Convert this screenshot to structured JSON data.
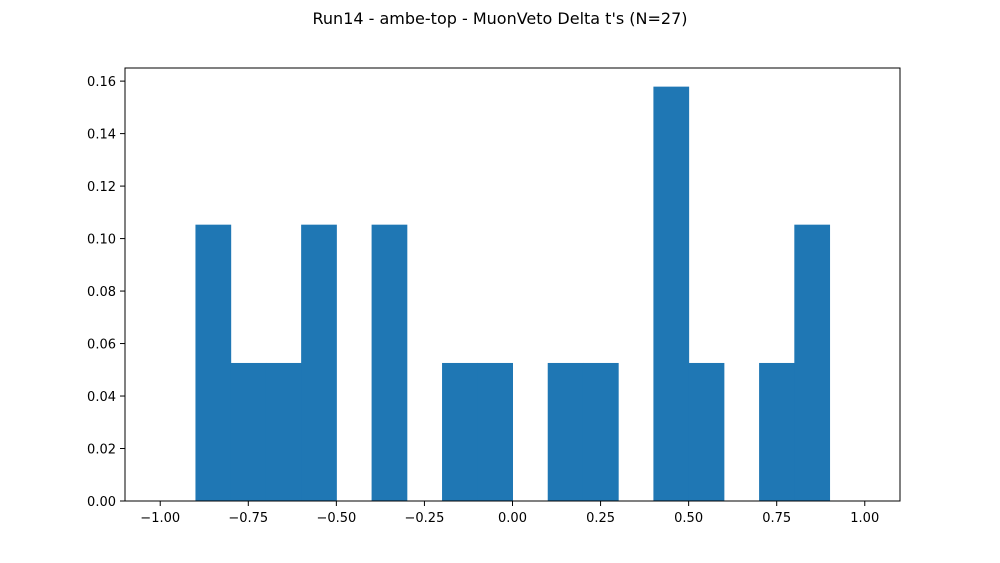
{
  "figure": {
    "title": "Run14 - ambe-top - MuonVeto Delta t's (N=27)"
  },
  "chart_data": {
    "type": "bar",
    "title": "Run14 - ambe-top - MuonVeto Delta t's (N=27)",
    "xlabel": "",
    "ylabel": "",
    "xlim": [
      -1.1,
      1.1
    ],
    "ylim": [
      0.0,
      0.165
    ],
    "x_ticks": [
      -1.0,
      -0.75,
      -0.5,
      -0.25,
      0.0,
      0.25,
      0.5,
      0.75,
      1.0
    ],
    "x_tick_labels": [
      "−1.00",
      "−0.75",
      "−0.50",
      "−0.25",
      "0.00",
      "0.25",
      "0.50",
      "0.75",
      "1.00"
    ],
    "y_ticks": [
      0.0,
      0.02,
      0.04,
      0.06,
      0.08,
      0.1,
      0.12,
      0.14,
      0.16
    ],
    "y_tick_labels": [
      "0.00",
      "0.02",
      "0.04",
      "0.06",
      "0.08",
      "0.10",
      "0.12",
      "0.14",
      "0.16"
    ],
    "grid": false,
    "bar_color": "#1f77b4",
    "bins": [
      {
        "x0": -0.9,
        "x1": -0.8,
        "value": 0.1053
      },
      {
        "x0": -0.8,
        "x1": -0.7,
        "value": 0.0526
      },
      {
        "x0": -0.7,
        "x1": -0.6,
        "value": 0.0526
      },
      {
        "x0": -0.6,
        "x1": -0.5,
        "value": 0.1053
      },
      {
        "x0": -0.4,
        "x1": -0.3,
        "value": 0.1053
      },
      {
        "x0": -0.2,
        "x1": -0.1,
        "value": 0.0526
      },
      {
        "x0": -0.1,
        "x1": 0.0,
        "value": 0.0526
      },
      {
        "x0": 0.1,
        "x1": 0.2,
        "value": 0.0526
      },
      {
        "x0": 0.2,
        "x1": 0.3,
        "value": 0.0526
      },
      {
        "x0": 0.4,
        "x1": 0.5,
        "value": 0.1579
      },
      {
        "x0": 0.5,
        "x1": 0.6,
        "value": 0.0526
      },
      {
        "x0": 0.7,
        "x1": 0.8,
        "value": 0.0526
      },
      {
        "x0": 0.8,
        "x1": 0.9,
        "value": 0.1053
      }
    ]
  }
}
